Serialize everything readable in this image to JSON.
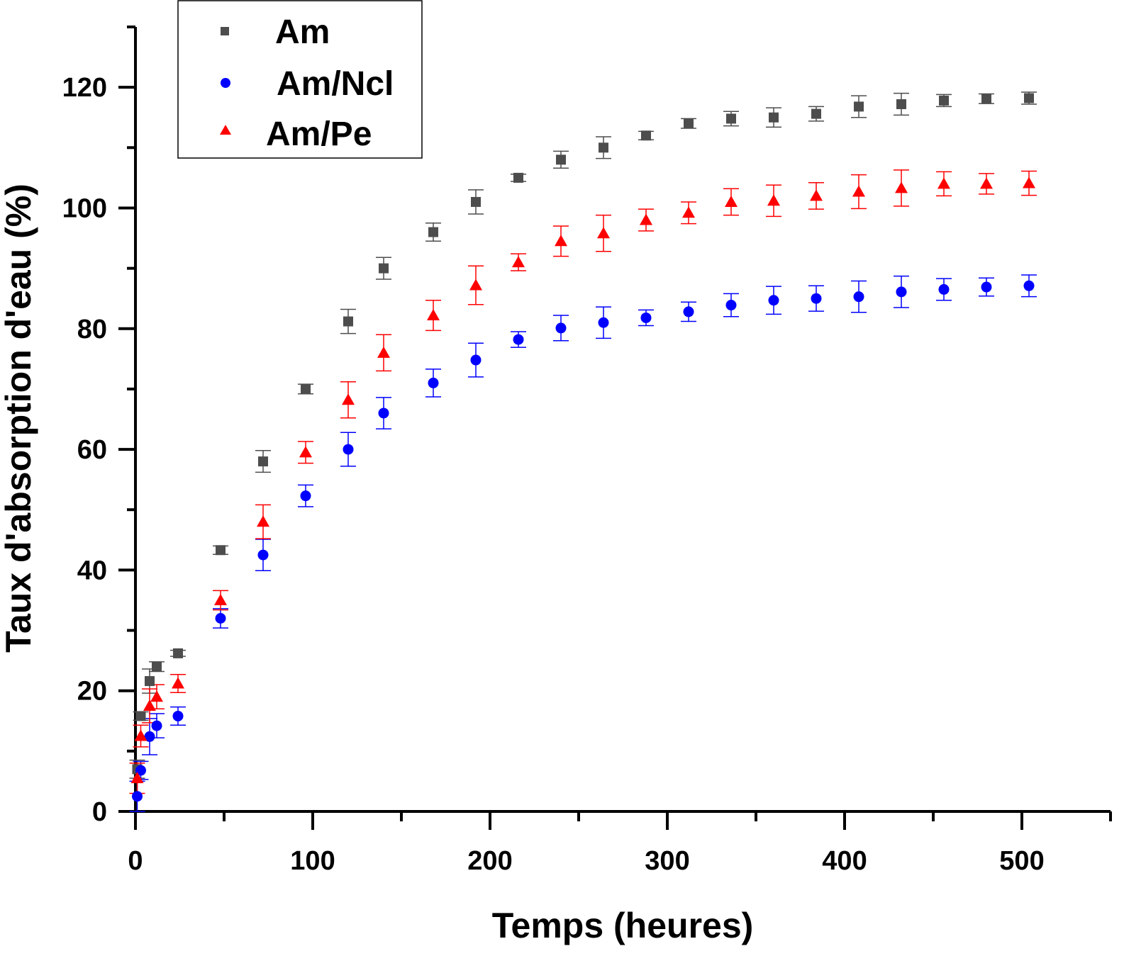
{
  "chart_data": {
    "type": "scatter",
    "title": "",
    "xlabel": "Temps (heures)",
    "ylabel": "Taux d'absorption d'eau (%)",
    "xlim": [
      0,
      550
    ],
    "ylim": [
      0,
      130
    ],
    "xticks": [
      0,
      100,
      200,
      300,
      400,
      500
    ],
    "xticks_minor": [
      50,
      150,
      250,
      350,
      450,
      550
    ],
    "yticks": [
      0,
      20,
      40,
      60,
      80,
      100,
      120
    ],
    "yticks_minor": [
      10,
      30,
      50,
      70,
      90,
      110,
      130
    ],
    "grid": false,
    "legend_position": "top-left",
    "x": [
      1,
      3,
      8,
      12,
      24,
      48,
      72,
      96,
      120,
      140,
      168,
      192,
      216,
      240,
      264,
      288,
      312,
      336,
      360,
      384,
      408,
      432,
      456,
      480,
      504
    ],
    "series": [
      {
        "name": "Am",
        "marker": "square",
        "color": "#4d4d4d",
        "values": [
          7,
          15.8,
          21.6,
          24,
          26.2,
          43.3,
          58,
          70,
          81.2,
          90,
          96,
          101,
          105,
          108,
          110,
          112,
          114,
          114.8,
          115,
          115.6,
          116.8,
          117.2,
          117.8,
          118.1,
          118.2
        ],
        "errors": [
          1.5,
          0.7,
          2,
          0.8,
          0.5,
          0.7,
          1.8,
          0.8,
          2,
          1.8,
          1.5,
          2,
          0.6,
          1.4,
          1.8,
          0.7,
          0.8,
          1.2,
          1.6,
          1.2,
          1.8,
          1.8,
          1,
          0.8,
          1
        ]
      },
      {
        "name": "Am/Ncl",
        "marker": "circle",
        "color": "#0000ff",
        "values": [
          2.5,
          6.8,
          12.4,
          14.2,
          15.8,
          32,
          42.5,
          52.3,
          60,
          66,
          71,
          74.8,
          78.2,
          80.1,
          81,
          81.8,
          82.8,
          83.9,
          84.7,
          85,
          85.3,
          86.1,
          86.5,
          86.9,
          87.1
        ],
        "errors": [
          2.5,
          1.5,
          3,
          2,
          1.5,
          1.6,
          2.6,
          1.8,
          2.8,
          2.6,
          2.3,
          2.8,
          1.3,
          2.1,
          2.6,
          1.3,
          1.6,
          1.9,
          2.3,
          2.1,
          2.6,
          2.6,
          1.8,
          1.5,
          1.8
        ]
      },
      {
        "name": "Am/Pe",
        "marker": "triangle",
        "color": "#ff0000",
        "values": [
          5.5,
          12.5,
          17.5,
          19,
          21.2,
          35,
          48,
          59.5,
          68.2,
          76,
          82.2,
          87.2,
          91,
          94.5,
          95.8,
          98,
          99.2,
          101,
          101.2,
          102,
          102.7,
          103.3,
          104,
          104,
          104.1
        ],
        "errors": [
          2.5,
          1.8,
          2.8,
          2,
          1.5,
          1.6,
          2.8,
          1.8,
          3,
          3,
          2.5,
          3.2,
          1.4,
          2.5,
          3,
          1.8,
          1.8,
          2.2,
          2.6,
          2.2,
          2.8,
          3,
          2,
          1.7,
          2
        ]
      }
    ],
    "xtick_labels": [
      "0",
      "100",
      "200",
      "300",
      "400",
      "500"
    ],
    "ytick_labels": [
      "0",
      "20",
      "40",
      "60",
      "80",
      "100",
      "120"
    ]
  }
}
